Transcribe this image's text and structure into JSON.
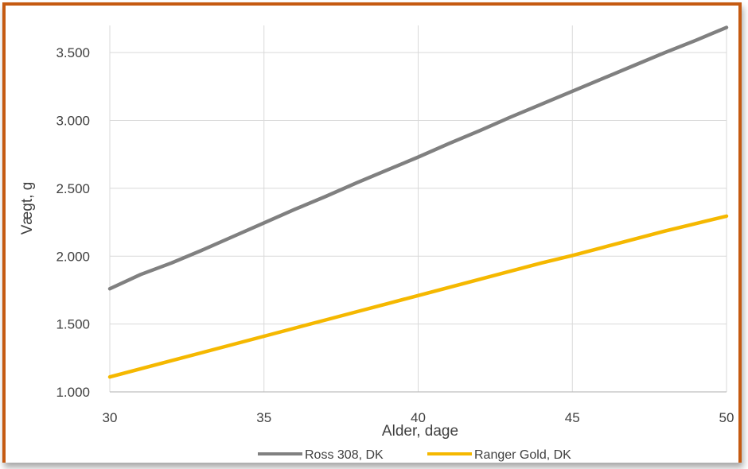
{
  "chart_data": {
    "type": "line",
    "title": "",
    "xlabel": "Alder, dage",
    "ylabel": "Vægt, g",
    "xlim": [
      30,
      50
    ],
    "ylim": [
      1000,
      3700
    ],
    "x_ticks": [
      30,
      35,
      40,
      45,
      50
    ],
    "x_tick_labels": [
      "30",
      "35",
      "40",
      "45",
      "50"
    ],
    "y_ticks": [
      1000,
      1500,
      2000,
      2500,
      3000,
      3500
    ],
    "y_tick_labels": [
      "1.000",
      "1.500",
      "2.000",
      "2.500",
      "3.000",
      "3.500"
    ],
    "grid": true,
    "legend_position": "bottom",
    "x": [
      30,
      31,
      32,
      33,
      34,
      35,
      36,
      37,
      38,
      39,
      40,
      41,
      42,
      43,
      44,
      45,
      46,
      47,
      48,
      49,
      50
    ],
    "series": [
      {
        "name": "Ross 308, DK",
        "color": "#808080",
        "values": [
          1760,
          1865,
          1950,
          2045,
          2145,
          2245,
          2345,
          2440,
          2540,
          2635,
          2730,
          2830,
          2925,
          3025,
          3120,
          3215,
          3310,
          3405,
          3500,
          3590,
          3685
        ]
      },
      {
        "name": "Ranger Gold, DK",
        "color": "#f5b800",
        "values": [
          1110,
          1170,
          1230,
          1290,
          1350,
          1410,
          1470,
          1530,
          1590,
          1650,
          1710,
          1770,
          1830,
          1890,
          1950,
          2005,
          2065,
          2125,
          2185,
          2240,
          2295
        ]
      }
    ]
  }
}
